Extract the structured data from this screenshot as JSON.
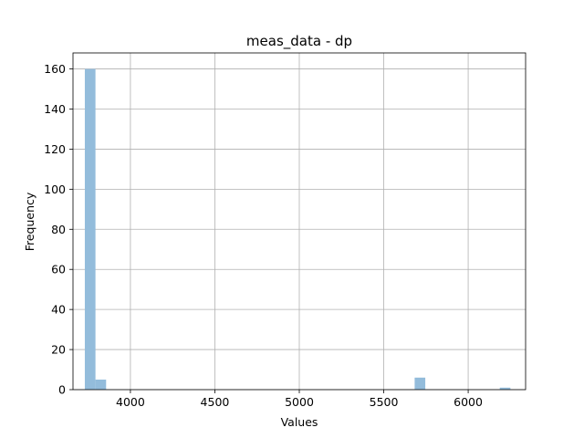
{
  "chart_data": {
    "type": "bar",
    "subtype": "histogram",
    "title": "meas_data - dp",
    "xlabel": "Values",
    "ylabel": "Frequency",
    "xlim": [
      3660,
      6340
    ],
    "ylim": [
      0,
      168
    ],
    "x_ticks": [
      4000,
      4500,
      5000,
      5500,
      6000
    ],
    "y_ticks": [
      0,
      20,
      40,
      60,
      80,
      100,
      120,
      140,
      160
    ],
    "grid": true,
    "bar_color": "#93bcdb",
    "bins": [
      {
        "start": 3730,
        "end": 3793,
        "count": 160
      },
      {
        "start": 3793,
        "end": 3856,
        "count": 5
      },
      {
        "start": 3856,
        "end": 3919,
        "count": 0
      },
      {
        "start": 3919,
        "end": 3982,
        "count": 0
      },
      {
        "start": 3982,
        "end": 4045,
        "count": 0
      },
      {
        "start": 4045,
        "end": 4108,
        "count": 0
      },
      {
        "start": 4108,
        "end": 4171,
        "count": 0
      },
      {
        "start": 4171,
        "end": 4234,
        "count": 0
      },
      {
        "start": 4234,
        "end": 4297,
        "count": 0
      },
      {
        "start": 4297,
        "end": 4360,
        "count": 0
      },
      {
        "start": 4360,
        "end": 4423,
        "count": 0
      },
      {
        "start": 4423,
        "end": 4486,
        "count": 0
      },
      {
        "start": 4486,
        "end": 4549,
        "count": 0
      },
      {
        "start": 4549,
        "end": 4612,
        "count": 0
      },
      {
        "start": 4612,
        "end": 4675,
        "count": 0
      },
      {
        "start": 4675,
        "end": 4738,
        "count": 0
      },
      {
        "start": 4738,
        "end": 4801,
        "count": 0
      },
      {
        "start": 4801,
        "end": 4864,
        "count": 0
      },
      {
        "start": 4864,
        "end": 4927,
        "count": 0
      },
      {
        "start": 4927,
        "end": 4990,
        "count": 0
      },
      {
        "start": 4990,
        "end": 5053,
        "count": 0
      },
      {
        "start": 5053,
        "end": 5116,
        "count": 0
      },
      {
        "start": 5116,
        "end": 5179,
        "count": 0
      },
      {
        "start": 5179,
        "end": 5242,
        "count": 0
      },
      {
        "start": 5242,
        "end": 5305,
        "count": 0
      },
      {
        "start": 5305,
        "end": 5368,
        "count": 0
      },
      {
        "start": 5368,
        "end": 5431,
        "count": 0
      },
      {
        "start": 5431,
        "end": 5494,
        "count": 0
      },
      {
        "start": 5494,
        "end": 5557,
        "count": 0
      },
      {
        "start": 5557,
        "end": 5620,
        "count": 0
      },
      {
        "start": 5620,
        "end": 5683,
        "count": 0
      },
      {
        "start": 5683,
        "end": 5746,
        "count": 6
      },
      {
        "start": 5746,
        "end": 5809,
        "count": 0
      },
      {
        "start": 5809,
        "end": 5872,
        "count": 0
      },
      {
        "start": 5872,
        "end": 5935,
        "count": 0
      },
      {
        "start": 5935,
        "end": 5998,
        "count": 0
      },
      {
        "start": 5998,
        "end": 6061,
        "count": 0
      },
      {
        "start": 6061,
        "end": 6124,
        "count": 0
      },
      {
        "start": 6124,
        "end": 6187,
        "count": 0
      },
      {
        "start": 6187,
        "end": 6250,
        "count": 1
      }
    ]
  }
}
